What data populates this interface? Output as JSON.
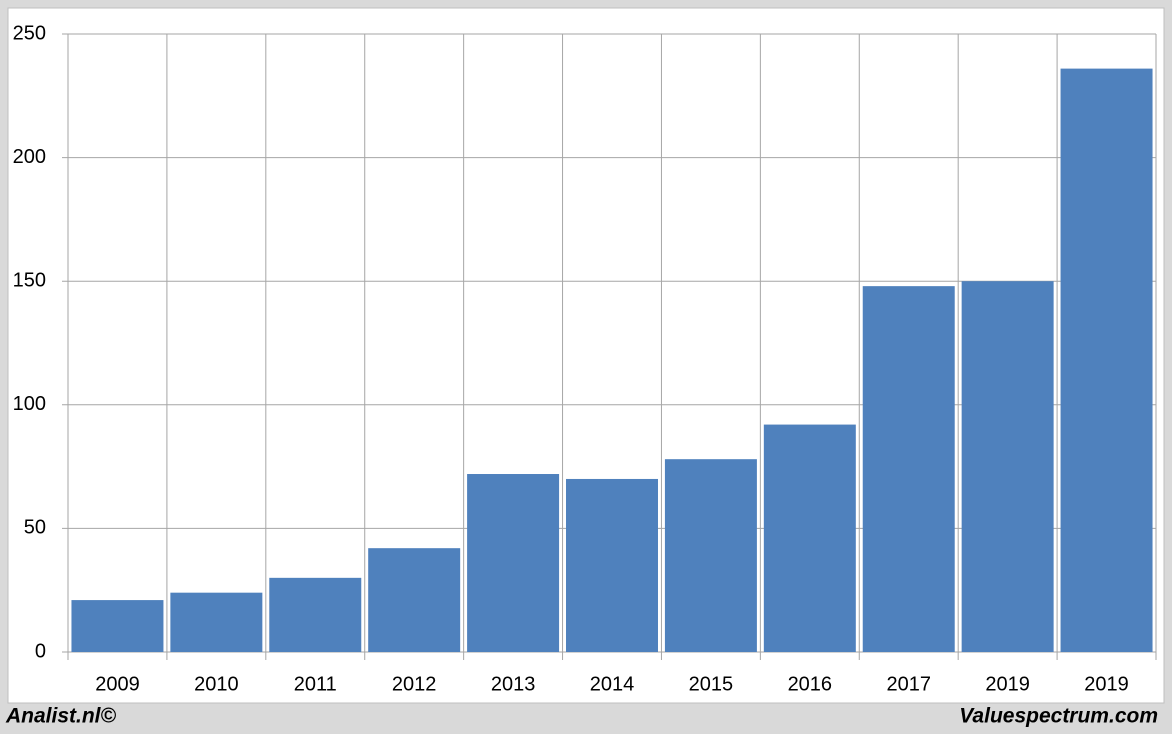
{
  "chart_data": {
    "type": "bar",
    "categories": [
      "2009",
      "2010",
      "2011",
      "2012",
      "2013",
      "2014",
      "2015",
      "2016",
      "2017",
      "2019",
      "2019"
    ],
    "values": [
      21,
      24,
      30,
      42,
      72,
      70,
      78,
      92,
      148,
      150,
      236
    ],
    "color": "#4f81bd",
    "ylim": [
      0,
      250
    ],
    "yticks": [
      0,
      50,
      100,
      150,
      200,
      250
    ],
    "grid": true,
    "footer_left": "Analist.nl©",
    "footer_right": "Valuespectrum.com"
  }
}
